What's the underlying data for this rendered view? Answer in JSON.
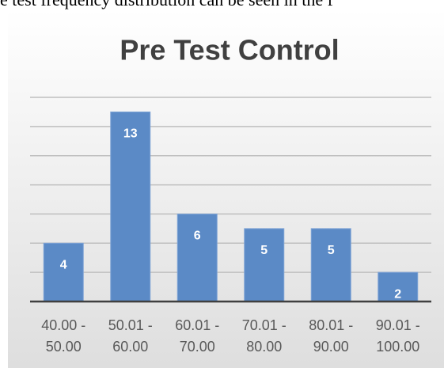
{
  "page_text": "e test frequency distribution can be seen in the f",
  "chart_data": {
    "type": "bar",
    "title": "Pre Test Control",
    "categories": [
      "40.00 - 50.00",
      "50.01 - 60.00",
      "60.01 - 70.00",
      "70.01 - 80.00",
      "80.01 - 90.00",
      "90.01 - 100.00"
    ],
    "values": [
      4,
      13,
      6,
      5,
      5,
      2
    ],
    "color": "#5b8ac6",
    "ylim": [
      0,
      14
    ],
    "yticks": [
      0,
      2,
      4,
      6,
      8,
      10,
      12,
      14
    ],
    "grid": true
  }
}
